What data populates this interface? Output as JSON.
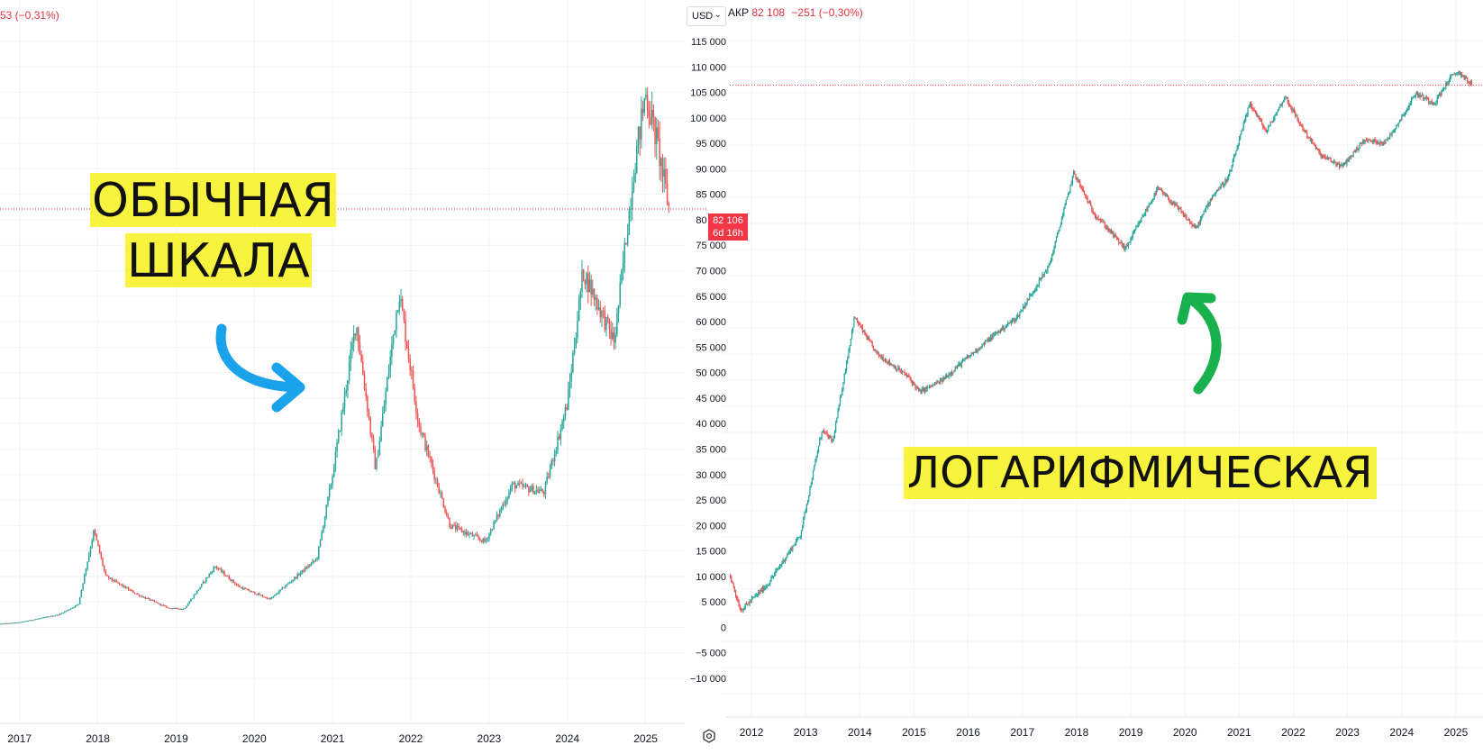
{
  "left_chart": {
    "header_change": "53 (−0,31%)",
    "currency": "USD",
    "last_price": "82 106",
    "countdown": "6d 16h",
    "label_line1": "ОБЫЧНАЯ",
    "label_line2": "ШКАЛА"
  },
  "right_chart": {
    "header_prefix": "АКР",
    "header_price": "82 108",
    "header_change": "−251 (−0,30%)",
    "label": "ЛОГАРИФМИЧЕСКАЯ"
  },
  "colors": {
    "up": "#26a69a",
    "down": "#ef5350",
    "price_line": "#f23645",
    "yellow": "#f7f33e",
    "blue_arrow": "#1aa3ea",
    "green_arrow": "#18b14e"
  },
  "icons": [
    "settings-gear-icon",
    "chevron-down-icon",
    "curved-arrow-right-icon",
    "curved-arrow-up-icon"
  ],
  "chart_data": [
    {
      "type": "candlestick",
      "scale": "linear",
      "x_ticks": [
        "2017",
        "2018",
        "2019",
        "2020",
        "2021",
        "2022",
        "2023",
        "2024",
        "2025"
      ],
      "y_ticks": [
        "115 000",
        "110 000",
        "105 000",
        "100 000",
        "95 000",
        "90 000",
        "85 000",
        "80 000",
        "75 000",
        "70 000",
        "65 000",
        "60 000",
        "55 000",
        "50 000",
        "45 000",
        "40 000",
        "35 000",
        "30 000",
        "25 000",
        "20 000",
        "15 000",
        "10 000",
        "5 000",
        "0",
        "−5 000",
        "−10 000"
      ],
      "ylim": [
        -10000,
        115000
      ],
      "xlim": [
        2016.75,
        2025.5
      ],
      "last_price": 82106,
      "series": [
        {
          "anchors": [
            [
              2016.75,
              700
            ],
            [
              2017.0,
              1000
            ],
            [
              2017.5,
              2500
            ],
            [
              2017.75,
              4500
            ],
            [
              2017.95,
              19000
            ],
            [
              2018.1,
              10000
            ],
            [
              2018.5,
              6500
            ],
            [
              2018.9,
              3800
            ],
            [
              2019.1,
              3600
            ],
            [
              2019.5,
              12000
            ],
            [
              2019.8,
              8000
            ],
            [
              2020.2,
              5500
            ],
            [
              2020.5,
              9500
            ],
            [
              2020.8,
              13500
            ],
            [
              2021.0,
              30000
            ],
            [
              2021.3,
              60000
            ],
            [
              2021.55,
              31000
            ],
            [
              2021.85,
              66000
            ],
            [
              2022.1,
              40000
            ],
            [
              2022.5,
              20000
            ],
            [
              2022.95,
              16800
            ],
            [
              2023.3,
              28000
            ],
            [
              2023.7,
              26500
            ],
            [
              2024.0,
              44000
            ],
            [
              2024.2,
              70000
            ],
            [
              2024.6,
              56000
            ],
            [
              2024.85,
              90000
            ],
            [
              2025.0,
              105000
            ],
            [
              2025.15,
              95000
            ],
            [
              2025.3,
              82106
            ]
          ]
        }
      ]
    },
    {
      "type": "candlestick",
      "scale": "log",
      "x_ticks": [
        "2012",
        "2013",
        "2014",
        "2015",
        "2016",
        "2017",
        "2018",
        "2019",
        "2020",
        "2021",
        "2022",
        "2023",
        "2024",
        "2025"
      ],
      "xlim": [
        2011.6,
        2025.5
      ],
      "last_price": 82108,
      "series": [
        {
          "anchors": [
            [
              2011.6,
              6
            ],
            [
              2011.8,
              3
            ],
            [
              2012.3,
              5
            ],
            [
              2012.9,
              13
            ],
            [
              2013.3,
              100
            ],
            [
              2013.5,
              80
            ],
            [
              2013.9,
              900
            ],
            [
              2014.3,
              450
            ],
            [
              2014.9,
              280
            ],
            [
              2015.1,
              210
            ],
            [
              2015.5,
              260
            ],
            [
              2015.9,
              380
            ],
            [
              2016.5,
              650
            ],
            [
              2016.9,
              900
            ],
            [
              2017.5,
              2500
            ],
            [
              2017.95,
              15000
            ],
            [
              2018.3,
              7000
            ],
            [
              2018.9,
              3400
            ],
            [
              2019.5,
              11000
            ],
            [
              2019.9,
              7200
            ],
            [
              2020.2,
              5000
            ],
            [
              2020.5,
              9500
            ],
            [
              2020.8,
              13500
            ],
            [
              2021.2,
              58000
            ],
            [
              2021.5,
              33000
            ],
            [
              2021.85,
              66000
            ],
            [
              2022.1,
              40000
            ],
            [
              2022.5,
              21000
            ],
            [
              2022.9,
              16800
            ],
            [
              2023.3,
              28000
            ],
            [
              2023.7,
              27000
            ],
            [
              2024.1,
              52000
            ],
            [
              2024.25,
              70000
            ],
            [
              2024.6,
              58000
            ],
            [
              2024.9,
              95000
            ],
            [
              2025.05,
              106000
            ],
            [
              2025.3,
              82108
            ]
          ]
        }
      ]
    }
  ]
}
